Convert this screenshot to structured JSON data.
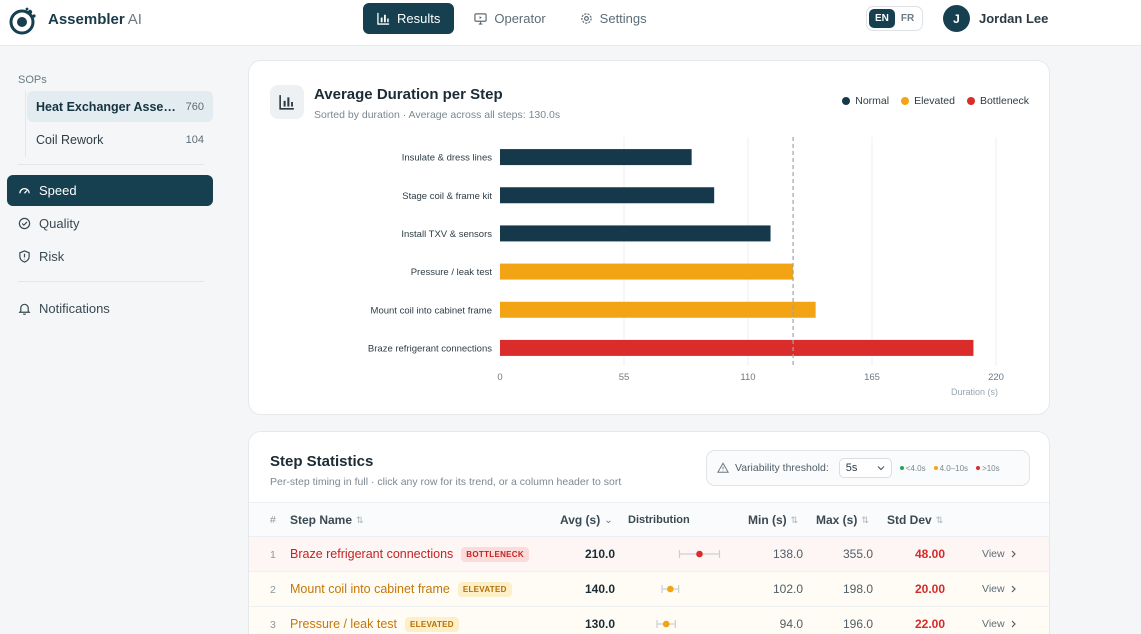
{
  "app": {
    "name": "Assembler",
    "name_suffix": "AI"
  },
  "nav": {
    "items": [
      {
        "label": "Results",
        "icon": "bar-chart-icon",
        "active": true
      },
      {
        "label": "Operator",
        "icon": "monitor-icon",
        "active": false
      },
      {
        "label": "Settings",
        "icon": "gear-icon",
        "active": false
      }
    ]
  },
  "lang": {
    "options": [
      "EN",
      "FR"
    ],
    "selected": "EN"
  },
  "user": {
    "initial": "J",
    "name": "Jordan Lee"
  },
  "sidebar": {
    "sop_heading": "SOPs",
    "sops": [
      {
        "label": "Heat Exchanger Asse…",
        "count": "760",
        "selected": true
      },
      {
        "label": "Coil Rework",
        "count": "104",
        "selected": false
      }
    ],
    "nav": [
      {
        "label": "Speed",
        "icon": "gauge-icon",
        "active": true
      },
      {
        "label": "Quality",
        "icon": "check-circle-icon",
        "active": false
      },
      {
        "label": "Risk",
        "icon": "shield-icon",
        "active": false
      }
    ],
    "notifications": {
      "label": "Notifications",
      "icon": "bell-icon"
    }
  },
  "chart_card": {
    "title": "Average Duration per Step",
    "subtitle": "Sorted by duration · Average across all steps: 130.0s",
    "legend": [
      {
        "label": "Normal",
        "color": "#15394a"
      },
      {
        "label": "Elevated",
        "color": "#f2a414"
      },
      {
        "label": "Bottleneck",
        "color": "#db2c2c"
      }
    ]
  },
  "chart_data": {
    "type": "bar",
    "orientation": "horizontal",
    "title": "Average Duration per Step",
    "xlabel": "Duration (s)",
    "ylabel": "",
    "xlim": [
      0,
      220
    ],
    "xticks": [
      0,
      55,
      110,
      165,
      220
    ],
    "reference_line": 130,
    "grid": true,
    "legend_position": "top-right",
    "categories": [
      "Insulate & dress lines",
      "Stage coil & frame kit",
      "Install TXV & sensors",
      "Pressure / leak test",
      "Mount coil into cabinet frame",
      "Braze refrigerant connections"
    ],
    "values": [
      85,
      95,
      120,
      130,
      140,
      210
    ],
    "status": [
      "Normal",
      "Normal",
      "Normal",
      "Elevated",
      "Elevated",
      "Bottleneck"
    ]
  },
  "stats": {
    "title": "Step Statistics",
    "subtitle": "Per-step timing in full · click any row for its trend, or a column header to sort",
    "threshold": {
      "label": "Variability threshold:",
      "value": "5s",
      "keys": [
        {
          "label": "<4.0s",
          "color": "#22a55b"
        },
        {
          "label": "4.0–10s",
          "color": "#f2a414"
        },
        {
          "label": ">10s",
          "color": "#db2c2c"
        }
      ]
    },
    "columns": {
      "num": "#",
      "name": "Step Name",
      "avg": "Avg (s)",
      "dist": "Distribution",
      "min": "Min (s)",
      "max": "Max (s)",
      "std": "Std Dev"
    },
    "view_label": "View",
    "rows": [
      {
        "num": "1",
        "name": "Braze refrigerant connections",
        "badge": "BOTTLENECK",
        "status": "bottleneck",
        "avg": "210.0",
        "min": "138.0",
        "max": "355.0",
        "std": "48.00"
      },
      {
        "num": "2",
        "name": "Mount coil into cabinet frame",
        "badge": "ELEVATED",
        "status": "elevated",
        "avg": "140.0",
        "min": "102.0",
        "max": "198.0",
        "std": "20.00"
      },
      {
        "num": "3",
        "name": "Pressure / leak test",
        "badge": "ELEVATED",
        "status": "elevated",
        "avg": "130.0",
        "min": "94.0",
        "max": "196.0",
        "std": "22.00"
      }
    ]
  }
}
